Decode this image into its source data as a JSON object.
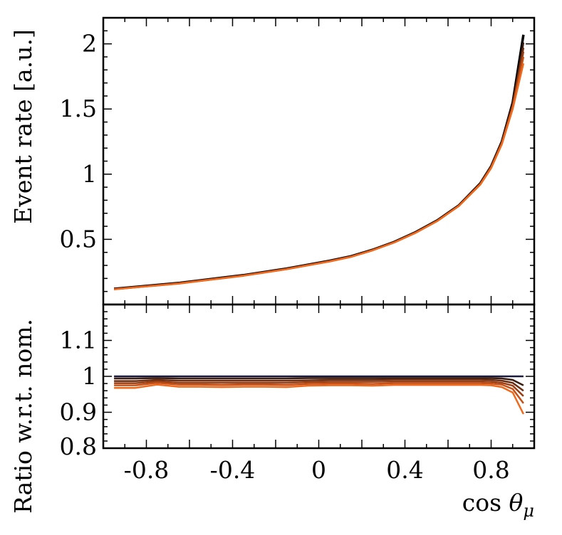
{
  "chart_data": [
    {
      "type": "line",
      "panel": "top",
      "ylabel": "Event rate [a.u.]",
      "xlim": [
        -1.0,
        1.0
      ],
      "ylim": [
        0.0,
        2.2
      ],
      "y_ticks": [
        0.5,
        1,
        1.5,
        2
      ],
      "y_tick_labels": [
        "0.5",
        "1",
        "1.5",
        "2"
      ],
      "x": [
        -0.95,
        -0.85,
        -0.75,
        -0.65,
        -0.55,
        -0.45,
        -0.35,
        -0.25,
        -0.15,
        -0.05,
        0.05,
        0.15,
        0.25,
        0.35,
        0.45,
        0.55,
        0.65,
        0.75,
        0.8,
        0.85,
        0.9,
        0.95
      ],
      "series": [
        {
          "color": "#000000",
          "values": [
            0.12,
            0.135,
            0.15,
            0.165,
            0.185,
            0.205,
            0.225,
            0.25,
            0.275,
            0.305,
            0.335,
            0.37,
            0.42,
            0.48,
            0.555,
            0.645,
            0.76,
            0.93,
            1.06,
            1.25,
            1.55,
            2.07
          ]
        },
        {
          "color": "#3a1c10",
          "values": [
            0.119,
            0.134,
            0.149,
            0.164,
            0.184,
            0.204,
            0.224,
            0.249,
            0.274,
            0.304,
            0.334,
            0.369,
            0.419,
            0.479,
            0.554,
            0.644,
            0.759,
            0.929,
            1.059,
            1.248,
            1.54,
            2.01
          ]
        },
        {
          "color": "#6b2e12",
          "values": [
            0.118,
            0.133,
            0.148,
            0.163,
            0.183,
            0.203,
            0.223,
            0.248,
            0.273,
            0.303,
            0.333,
            0.368,
            0.418,
            0.478,
            0.553,
            0.643,
            0.758,
            0.927,
            1.056,
            1.244,
            1.53,
            1.97
          ]
        },
        {
          "color": "#9a3f14",
          "values": [
            0.118,
            0.132,
            0.147,
            0.162,
            0.182,
            0.202,
            0.222,
            0.247,
            0.272,
            0.302,
            0.332,
            0.367,
            0.417,
            0.477,
            0.552,
            0.642,
            0.757,
            0.925,
            1.053,
            1.24,
            1.52,
            1.94
          ]
        },
        {
          "color": "#c65016",
          "values": [
            0.117,
            0.132,
            0.146,
            0.161,
            0.181,
            0.201,
            0.221,
            0.246,
            0.271,
            0.301,
            0.331,
            0.366,
            0.416,
            0.476,
            0.551,
            0.641,
            0.756,
            0.923,
            1.05,
            1.236,
            1.51,
            1.9
          ]
        },
        {
          "color": "#ee6a1e",
          "values": [
            0.116,
            0.131,
            0.145,
            0.16,
            0.18,
            0.2,
            0.22,
            0.245,
            0.27,
            0.3,
            0.33,
            0.365,
            0.415,
            0.475,
            0.55,
            0.64,
            0.755,
            0.92,
            1.046,
            1.23,
            1.5,
            1.85
          ]
        }
      ]
    },
    {
      "type": "line",
      "panel": "bottom",
      "xlabel": "cos θμ",
      "ylabel": "Ratio w.r.t. nom.",
      "xlim": [
        -1.0,
        1.0
      ],
      "ylim": [
        0.8,
        1.2
      ],
      "x_ticks": [
        -0.8,
        -0.4,
        0,
        0.4,
        0.8
      ],
      "x_tick_labels": [
        "-0.8",
        "-0.4",
        "0",
        "0.4",
        "0.8"
      ],
      "y_ticks": [
        0.8,
        0.9,
        1,
        1.1
      ],
      "y_tick_labels": [
        "0.8",
        "0.9",
        "1",
        "1.1"
      ],
      "x": [
        -0.95,
        -0.85,
        -0.75,
        -0.65,
        -0.55,
        -0.45,
        -0.35,
        -0.25,
        -0.15,
        -0.05,
        0.05,
        0.15,
        0.25,
        0.35,
        0.45,
        0.55,
        0.65,
        0.75,
        0.8,
        0.85,
        0.9,
        0.95
      ],
      "series": [
        {
          "color": "#1a1a3a",
          "values": [
            1.0,
            1.0,
            1.0,
            1.0,
            1.0,
            1.0,
            1.0,
            1.0,
            1.0,
            1.0,
            1.0,
            1.0,
            1.0,
            1.0,
            1.0,
            1.0,
            1.0,
            1.0,
            1.0,
            1.0,
            1.0,
            1.0
          ]
        },
        {
          "color": "#3a1c10",
          "values": [
            0.994,
            0.994,
            0.995,
            0.994,
            0.994,
            0.994,
            0.994,
            0.994,
            0.994,
            0.995,
            0.995,
            0.995,
            0.995,
            0.995,
            0.995,
            0.995,
            0.995,
            0.995,
            0.995,
            0.994,
            0.99,
            0.975
          ]
        },
        {
          "color": "#6b2e12",
          "values": [
            0.987,
            0.987,
            0.99,
            0.988,
            0.988,
            0.988,
            0.988,
            0.988,
            0.988,
            0.989,
            0.99,
            0.99,
            0.99,
            0.991,
            0.991,
            0.991,
            0.991,
            0.991,
            0.99,
            0.988,
            0.982,
            0.96
          ]
        },
        {
          "color": "#9a3f14",
          "values": [
            0.981,
            0.981,
            0.986,
            0.982,
            0.982,
            0.982,
            0.982,
            0.982,
            0.982,
            0.984,
            0.985,
            0.985,
            0.985,
            0.986,
            0.986,
            0.986,
            0.986,
            0.986,
            0.985,
            0.982,
            0.974,
            0.945
          ]
        },
        {
          "color": "#c65016",
          "values": [
            0.975,
            0.975,
            0.982,
            0.977,
            0.977,
            0.976,
            0.977,
            0.977,
            0.976,
            0.979,
            0.98,
            0.98,
            0.979,
            0.981,
            0.981,
            0.981,
            0.981,
            0.981,
            0.98,
            0.977,
            0.965,
            0.925
          ]
        },
        {
          "color": "#ee6a1e",
          "values": [
            0.968,
            0.968,
            0.977,
            0.971,
            0.971,
            0.97,
            0.971,
            0.971,
            0.97,
            0.974,
            0.975,
            0.975,
            0.974,
            0.976,
            0.976,
            0.976,
            0.976,
            0.976,
            0.975,
            0.97,
            0.955,
            0.895
          ]
        }
      ]
    }
  ]
}
